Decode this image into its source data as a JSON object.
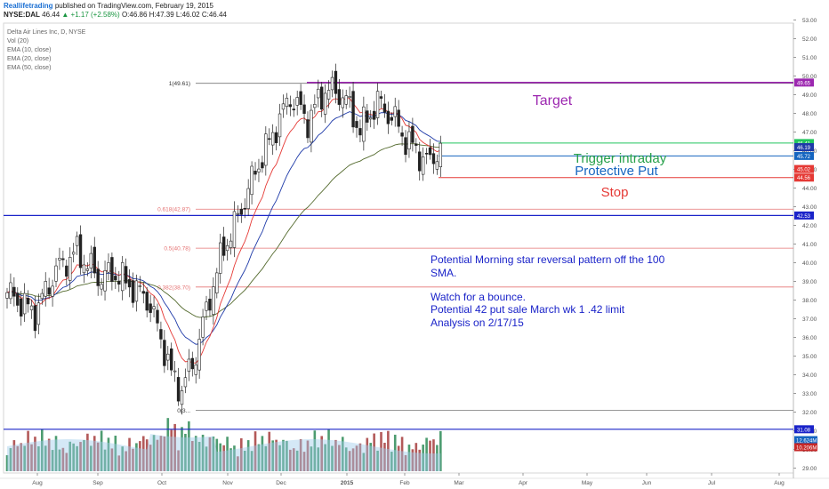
{
  "header": {
    "publisher": "Reallifetrading",
    "published_text": "published on TradingView.com, February 19, 2015",
    "symbol": "NYSE:DAL",
    "last": "46.44",
    "change": "+1.17 (+2.58%)",
    "open": "O:46.86",
    "high": "H:47.39",
    "low": "L:46.02",
    "close": "C:46.44"
  },
  "legend": {
    "title": "Delta Air Lines Inc, D, NYSE",
    "items": [
      "Vol (20)",
      "EMA (10, close)",
      "EMA (20, close)",
      "EMA (50, close)"
    ]
  },
  "colors": {
    "target": "#9c27b0",
    "trigger": "#27a04a",
    "put": "#1565c0",
    "stop": "#e53935",
    "note": "#1a23c9",
    "fib": "#e57373",
    "ema10": "#e53935",
    "ema20": "#1e3aa8",
    "ema50": "#556b2f",
    "bull": "#ffffff",
    "bear": "#222222",
    "vol_up": "#2e8b57",
    "vol_down": "#a63c3c",
    "vol_area": "#9fcdeb",
    "axis_text": "#555555"
  },
  "annotations": {
    "target": "Target",
    "trigger": "Trigger intraday",
    "protective_put": "Protective Put",
    "stop": "Stop",
    "note_lines": [
      "Potential Morning star reversal pattern off the 100",
      "SMA.",
      "",
      "Watch for a bounce.",
      "Potential 42 put sale March wk 1 .42 limit",
      "Analysis on 2/17/15"
    ]
  },
  "chart_data": {
    "type": "candlestick",
    "title": "Delta Air Lines Inc, D, NYSE",
    "xlabel": "",
    "ylabel": "",
    "ylim": [
      28.9,
      53.3
    ],
    "x_ticks": [
      "Aug",
      "Sep",
      "Oct",
      "Nov",
      "Dec",
      "2015",
      "Feb",
      "Mar",
      "Apr",
      "May",
      "Jun",
      "Jul",
      "Aug"
    ],
    "y_ticks": [
      "53.00",
      "52.00",
      "51.00",
      "50.00",
      "49.00",
      "48.00",
      "47.00",
      "46.00",
      "45.00",
      "44.00",
      "43.00",
      "42.00",
      "41.00",
      "40.00",
      "39.00",
      "38.00",
      "37.00",
      "36.00",
      "35.00",
      "34.00",
      "33.00",
      "32.00",
      "31.00",
      "30.00",
      "29.00"
    ],
    "fib_levels": [
      {
        "label": "1(49.61)",
        "value": 49.61
      },
      {
        "label": "0.618(42.87)",
        "value": 42.87
      },
      {
        "label": "0.5(40.78)",
        "value": 40.78
      },
      {
        "label": "0.382(38.70)",
        "value": 38.7
      },
      {
        "label": "0(3...",
        "value": 32.1
      }
    ],
    "levels": [
      {
        "name": "target",
        "value": 49.65,
        "label": "49.65"
      },
      {
        "name": "trigger",
        "value": 46.41,
        "label": "46.41"
      },
      {
        "name": "ema-current",
        "value": 46.19,
        "label": "46.19"
      },
      {
        "name": "protective-put",
        "value": 45.72,
        "label": "45.72"
      },
      {
        "name": "ema-50-current",
        "value": 45.02,
        "label": "45.02"
      },
      {
        "name": "stop",
        "value": 44.56,
        "label": "44.56"
      },
      {
        "name": "support-upper",
        "value": 42.53,
        "label": "42.53"
      },
      {
        "name": "support-lower",
        "value": 31.08,
        "label": "31.08"
      }
    ],
    "volume_labels": [
      "12.624M",
      "10.206M"
    ],
    "anchors": [
      [
        0,
        38.4
      ],
      [
        8,
        37.3
      ],
      [
        14,
        39.6
      ],
      [
        20,
        40.6
      ],
      [
        26,
        39.2
      ],
      [
        31,
        39.4
      ],
      [
        35,
        38.8
      ],
      [
        40,
        38.1
      ],
      [
        44,
        36.0
      ],
      [
        47,
        34.0
      ],
      [
        50,
        33.2
      ],
      [
        54,
        35.1
      ],
      [
        58,
        38.2
      ],
      [
        62,
        40.8
      ],
      [
        66,
        42.4
      ],
      [
        71,
        44.9
      ],
      [
        76,
        46.9
      ],
      [
        81,
        48.9
      ],
      [
        86,
        47.6
      ],
      [
        91,
        49.3
      ],
      [
        96,
        49.0
      ],
      [
        101,
        47.1
      ],
      [
        106,
        48.6
      ],
      [
        111,
        47.6
      ],
      [
        114,
        46.6
      ],
      [
        118,
        45.8
      ],
      [
        121,
        45.3
      ],
      [
        124,
        46.4
      ]
    ]
  }
}
